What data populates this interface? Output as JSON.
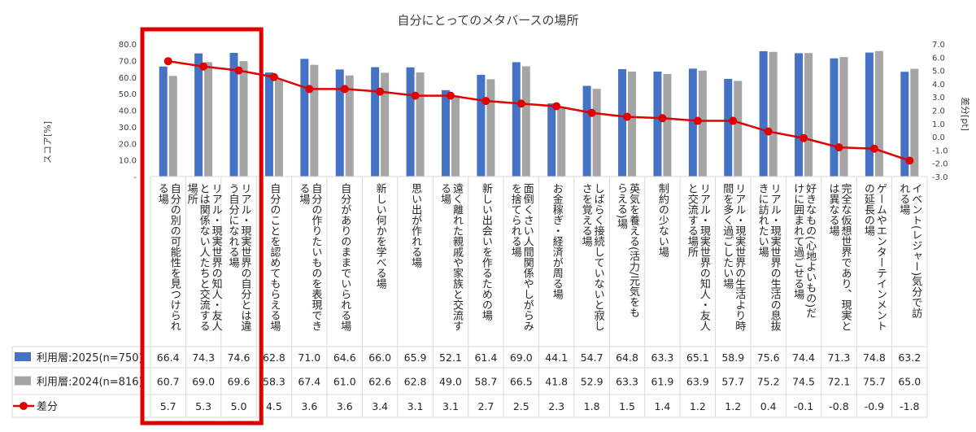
{
  "chart_data": {
    "type": "bar",
    "title": "自分にとってのメタバースの場所",
    "ylabel": "スコア[%]",
    "y2label": "差分[pt]",
    "ylim": [
      0,
      80
    ],
    "y2lim": [
      -3,
      7
    ],
    "y_ticks": [
      "-",
      "10.0",
      "20.0",
      "30.0",
      "40.0",
      "50.0",
      "60.0",
      "70.0",
      "80.0"
    ],
    "y2_ticks": [
      "-3.0",
      "-2.0",
      "-1.0",
      "0.0",
      "1.0",
      "2.0",
      "3.0",
      "4.0",
      "5.0",
      "6.0",
      "7.0"
    ],
    "categories": [
      "自分の別の可能性を見つけられる場",
      "リアル・現実世界の知人・友人とは関係ない人たちと交流する場所",
      "リアル・現実世界の自分とは違う自分になれる場",
      "自分のことを認めてもらえる場",
      "自分の作りたいものを表現できる場",
      "自分がありのままでいられる場",
      "新しい何かを学べる場",
      "思い出が作れる場",
      "遠く離れた親戚や家族と交流する場",
      "新しい出会いを作るための場",
      "面倒くさい人間関係やしがらみを捨てられる場",
      "お金稼ぎ・経済が周る場",
      "しばらく接続していないと寂しさを覚える場",
      "英気を養える(活力/元気をもらえる)場",
      "制約の少ない場",
      "リアル・現実世界の知人・友人と交流する場所",
      "リアル・現実世界の生活より時間を多く過ごしたい場",
      "リアル・現実世界の生活の息抜きに訪れたい場",
      "好きなもの(心地よいもの)だけに囲まれて過ごせる場",
      "完全な仮想世界であり、現実とは異なる場",
      "ゲームやエンターテインメントの延長の場",
      "イベント(レジャー)気分で訪れる場"
    ],
    "series": [
      {
        "name": "利用層:2025(n=750)",
        "kind": "bar",
        "axis": "left",
        "color": "#4472c4",
        "values": [
          66.4,
          74.3,
          74.6,
          62.8,
          71.0,
          64.6,
          66.0,
          65.9,
          52.1,
          61.4,
          69.0,
          44.1,
          54.7,
          64.8,
          63.3,
          65.1,
          58.9,
          75.6,
          74.4,
          71.3,
          74.8,
          63.2
        ]
      },
      {
        "name": "利用層:2024(n=816)",
        "kind": "bar",
        "axis": "left",
        "color": "#a5a5a5",
        "values": [
          60.7,
          69.0,
          69.6,
          58.3,
          67.4,
          61.0,
          62.6,
          62.8,
          49.0,
          58.7,
          66.5,
          41.8,
          52.9,
          63.3,
          61.9,
          63.9,
          57.7,
          75.2,
          74.5,
          72.1,
          75.7,
          65.0
        ]
      },
      {
        "name": "差分",
        "kind": "line",
        "axis": "right",
        "color": "#e00000",
        "values": [
          5.7,
          5.3,
          5.0,
          4.5,
          3.6,
          3.6,
          3.4,
          3.1,
          3.1,
          2.7,
          2.5,
          2.3,
          1.8,
          1.5,
          1.4,
          1.2,
          1.2,
          0.4,
          -0.1,
          -0.8,
          -0.9,
          -1.8
        ]
      }
    ],
    "table_values": {
      "s1": [
        "66.4",
        "74.3",
        "74.6",
        "62.8",
        "71.0",
        "64.6",
        "66.0",
        "65.9",
        "52.1",
        "61.4",
        "69.0",
        "44.1",
        "54.7",
        "64.8",
        "63.3",
        "65.1",
        "58.9",
        "75.6",
        "74.4",
        "71.3",
        "74.8",
        "63.2"
      ],
      "s2": [
        "60.7",
        "69.0",
        "69.6",
        "58.3",
        "67.4",
        "61.0",
        "62.6",
        "62.8",
        "49.0",
        "58.7",
        "66.5",
        "41.8",
        "52.9",
        "63.3",
        "61.9",
        "63.9",
        "57.7",
        "75.2",
        "74.5",
        "72.1",
        "75.7",
        "65.0"
      ],
      "diff": [
        "5.7",
        "5.3",
        "5.0",
        "4.5",
        "3.6",
        "3.6",
        "3.4",
        "3.1",
        "3.1",
        "2.7",
        "2.5",
        "2.3",
        "1.8",
        "1.5",
        "1.4",
        "1.2",
        "1.2",
        "0.4",
        "-0.1",
        "-0.8",
        "-0.9",
        "-1.8"
      ]
    },
    "highlight": {
      "first": 0,
      "last": 2,
      "color": "#e00000"
    },
    "legend_placement": "table-left",
    "grid": false
  }
}
